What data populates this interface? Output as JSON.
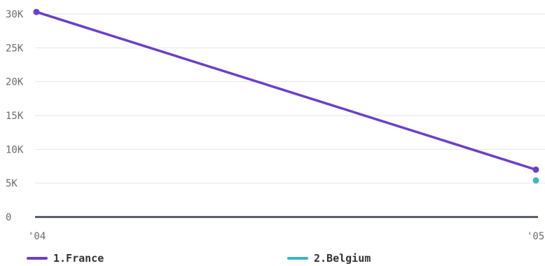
{
  "chart_data": {
    "type": "line",
    "x": [
      "'04",
      "'05"
    ],
    "y_ticks": [
      0,
      5000,
      10000,
      15000,
      20000,
      25000,
      30000
    ],
    "y_tick_labels": [
      "0",
      "5K",
      "10K",
      "15K",
      "20K",
      "25K",
      "30K"
    ],
    "ylim": [
      0,
      30000
    ],
    "grid": true,
    "legend_position": "bottom",
    "series": [
      {
        "name": "1.France",
        "color": "#6a3fc9",
        "values": [
          30300,
          7000
        ]
      },
      {
        "name": "2.Belgium",
        "color": "#3db6c0",
        "values": [
          null,
          5400
        ]
      }
    ]
  }
}
